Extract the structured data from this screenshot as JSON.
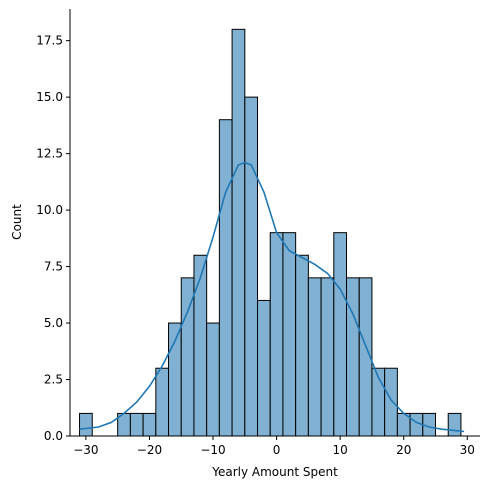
{
  "chart_data": {
    "type": "histogram",
    "title": "",
    "xlabel": "Yearly Amount Spent",
    "ylabel": "Count",
    "xlim": [
      -32.5,
      32
    ],
    "ylim": [
      0,
      18.9
    ],
    "x_ticks": [
      -30,
      -20,
      -10,
      0,
      10,
      20,
      30
    ],
    "x_tick_labels": [
      "−30",
      "−20",
      "−10",
      "0",
      "10",
      "20",
      "30"
    ],
    "y_ticks": [
      0,
      2.5,
      5,
      7.5,
      10,
      12.5,
      15,
      17.5
    ],
    "y_tick_labels": [
      "0.0",
      "2.5",
      "5.0",
      "7.5",
      "10.0",
      "12.5",
      "15.0",
      "17.5"
    ],
    "bin_start": -31.0,
    "bin_width": 2.0,
    "counts": [
      1,
      0,
      0,
      1,
      1,
      1,
      3,
      5,
      7,
      8,
      5,
      14,
      18,
      15,
      6,
      9,
      9,
      8,
      7,
      7,
      9,
      7,
      7,
      3,
      3,
      1,
      1,
      1,
      0,
      1
    ],
    "kde": {
      "x": [
        -31,
        -28,
        -26,
        -24,
        -22,
        -20,
        -18,
        -16,
        -14,
        -12,
        -10,
        -8,
        -6,
        -5,
        -4,
        -2,
        0,
        2,
        4,
        6,
        8,
        10,
        12,
        14,
        16,
        18,
        20,
        22,
        24,
        26,
        28,
        29.5
      ],
      "y": [
        0.3,
        0.4,
        0.6,
        1.0,
        1.5,
        2.2,
        3.1,
        4.2,
        5.5,
        7.0,
        8.8,
        10.8,
        12.0,
        12.1,
        12.0,
        10.8,
        9.0,
        8.2,
        7.9,
        7.6,
        7.2,
        6.5,
        5.4,
        4.0,
        2.6,
        1.6,
        1.0,
        0.6,
        0.4,
        0.3,
        0.25,
        0.2
      ]
    },
    "colors": {
      "bar_fill": "#80b1d3",
      "bar_edge": "#000000",
      "kde_line": "#1f77b4"
    },
    "grid": false,
    "legend": "none"
  }
}
